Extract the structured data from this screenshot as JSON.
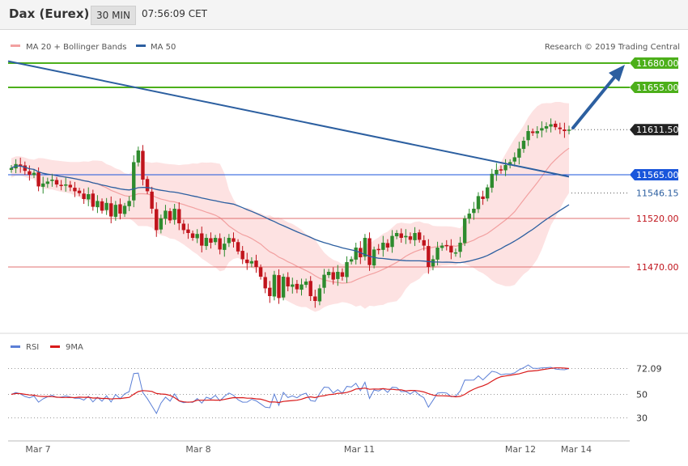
{
  "header": {
    "instrument": "Dax (Eurex)",
    "timeframe": "30 MIN",
    "time": "07:56:09 CET"
  },
  "legend": {
    "bb": "MA 20 + Bollinger Bands",
    "ma50": "MA 50",
    "credit": "Research © 2019 Trading Central",
    "rsi": "RSI",
    "ma9": "9MA"
  },
  "colors": {
    "up": "#2e8b2e",
    "down": "#c0141c",
    "band": "#fde2e2",
    "ma20": "#f2a0a0",
    "ma50": "#2c5fa0",
    "target": "#4caf1a",
    "support": "#e07070",
    "pivot": "#1a56db"
  },
  "chart_data": {
    "type": "candlestick",
    "y_unit": "points",
    "price_levels": [
      {
        "value": 11680.0,
        "label": "11680.00",
        "kind": "target"
      },
      {
        "value": 11655.0,
        "label": "11655.00",
        "kind": "target"
      },
      {
        "value": 11611.5,
        "label": "11611.50",
        "kind": "last"
      },
      {
        "value": 11565.0,
        "label": "11565.00",
        "kind": "pivot"
      },
      {
        "value": 11546.15,
        "label": "11546.15",
        "kind": "ma50"
      },
      {
        "value": 11520.0,
        "label": "11520.00",
        "kind": "support"
      },
      {
        "value": 11470.0,
        "label": "11470.00",
        "kind": "support"
      }
    ],
    "x_labels": [
      "Mar 7",
      "Mar 8",
      "Mar 11",
      "Mar 12",
      "Mar 14"
    ],
    "ma50_trendline": {
      "start": 11682,
      "end": 11563
    },
    "closes": [
      11572,
      11576,
      11574,
      11569,
      11565,
      11567,
      11553,
      11556,
      11558,
      11560,
      11555,
      11554,
      11555,
      11552,
      11548,
      11546,
      11540,
      11545,
      11532,
      11538,
      11528,
      11536,
      11522,
      11534,
      11525,
      11533,
      11538,
      11578,
      11590,
      11560,
      11548,
      11530,
      11508,
      11520,
      11528,
      11518,
      11530,
      11515,
      11508,
      11505,
      11500,
      11504,
      11492,
      11500,
      11495,
      11500,
      11488,
      11494,
      11500,
      11496,
      11486,
      11478,
      11474,
      11476,
      11470,
      11460,
      11448,
      11440,
      11462,
      11438,
      11460,
      11450,
      11452,
      11447,
      11452,
      11455,
      11440,
      11435,
      11448,
      11462,
      11465,
      11457,
      11465,
      11460,
      11475,
      11478,
      11490,
      11480,
      11500,
      11472,
      11488,
      11488,
      11495,
      11490,
      11502,
      11505,
      11500,
      11502,
      11498,
      11505,
      11498,
      11492,
      11470,
      11478,
      11490,
      11492,
      11492,
      11485,
      11485,
      11495,
      11520,
      11525,
      11530,
      11543,
      11540,
      11552,
      11566,
      11570,
      11570,
      11575,
      11578,
      11583,
      11592,
      11600,
      11610,
      11608,
      11610,
      11613,
      11615,
      11617,
      11614,
      11612,
      11610,
      11611.5
    ],
    "rsi": {
      "label": "RSI",
      "last": 72.09,
      "ticks": [
        30,
        50,
        72.09
      ]
    },
    "rsi_ma": {
      "label": "9MA"
    }
  }
}
